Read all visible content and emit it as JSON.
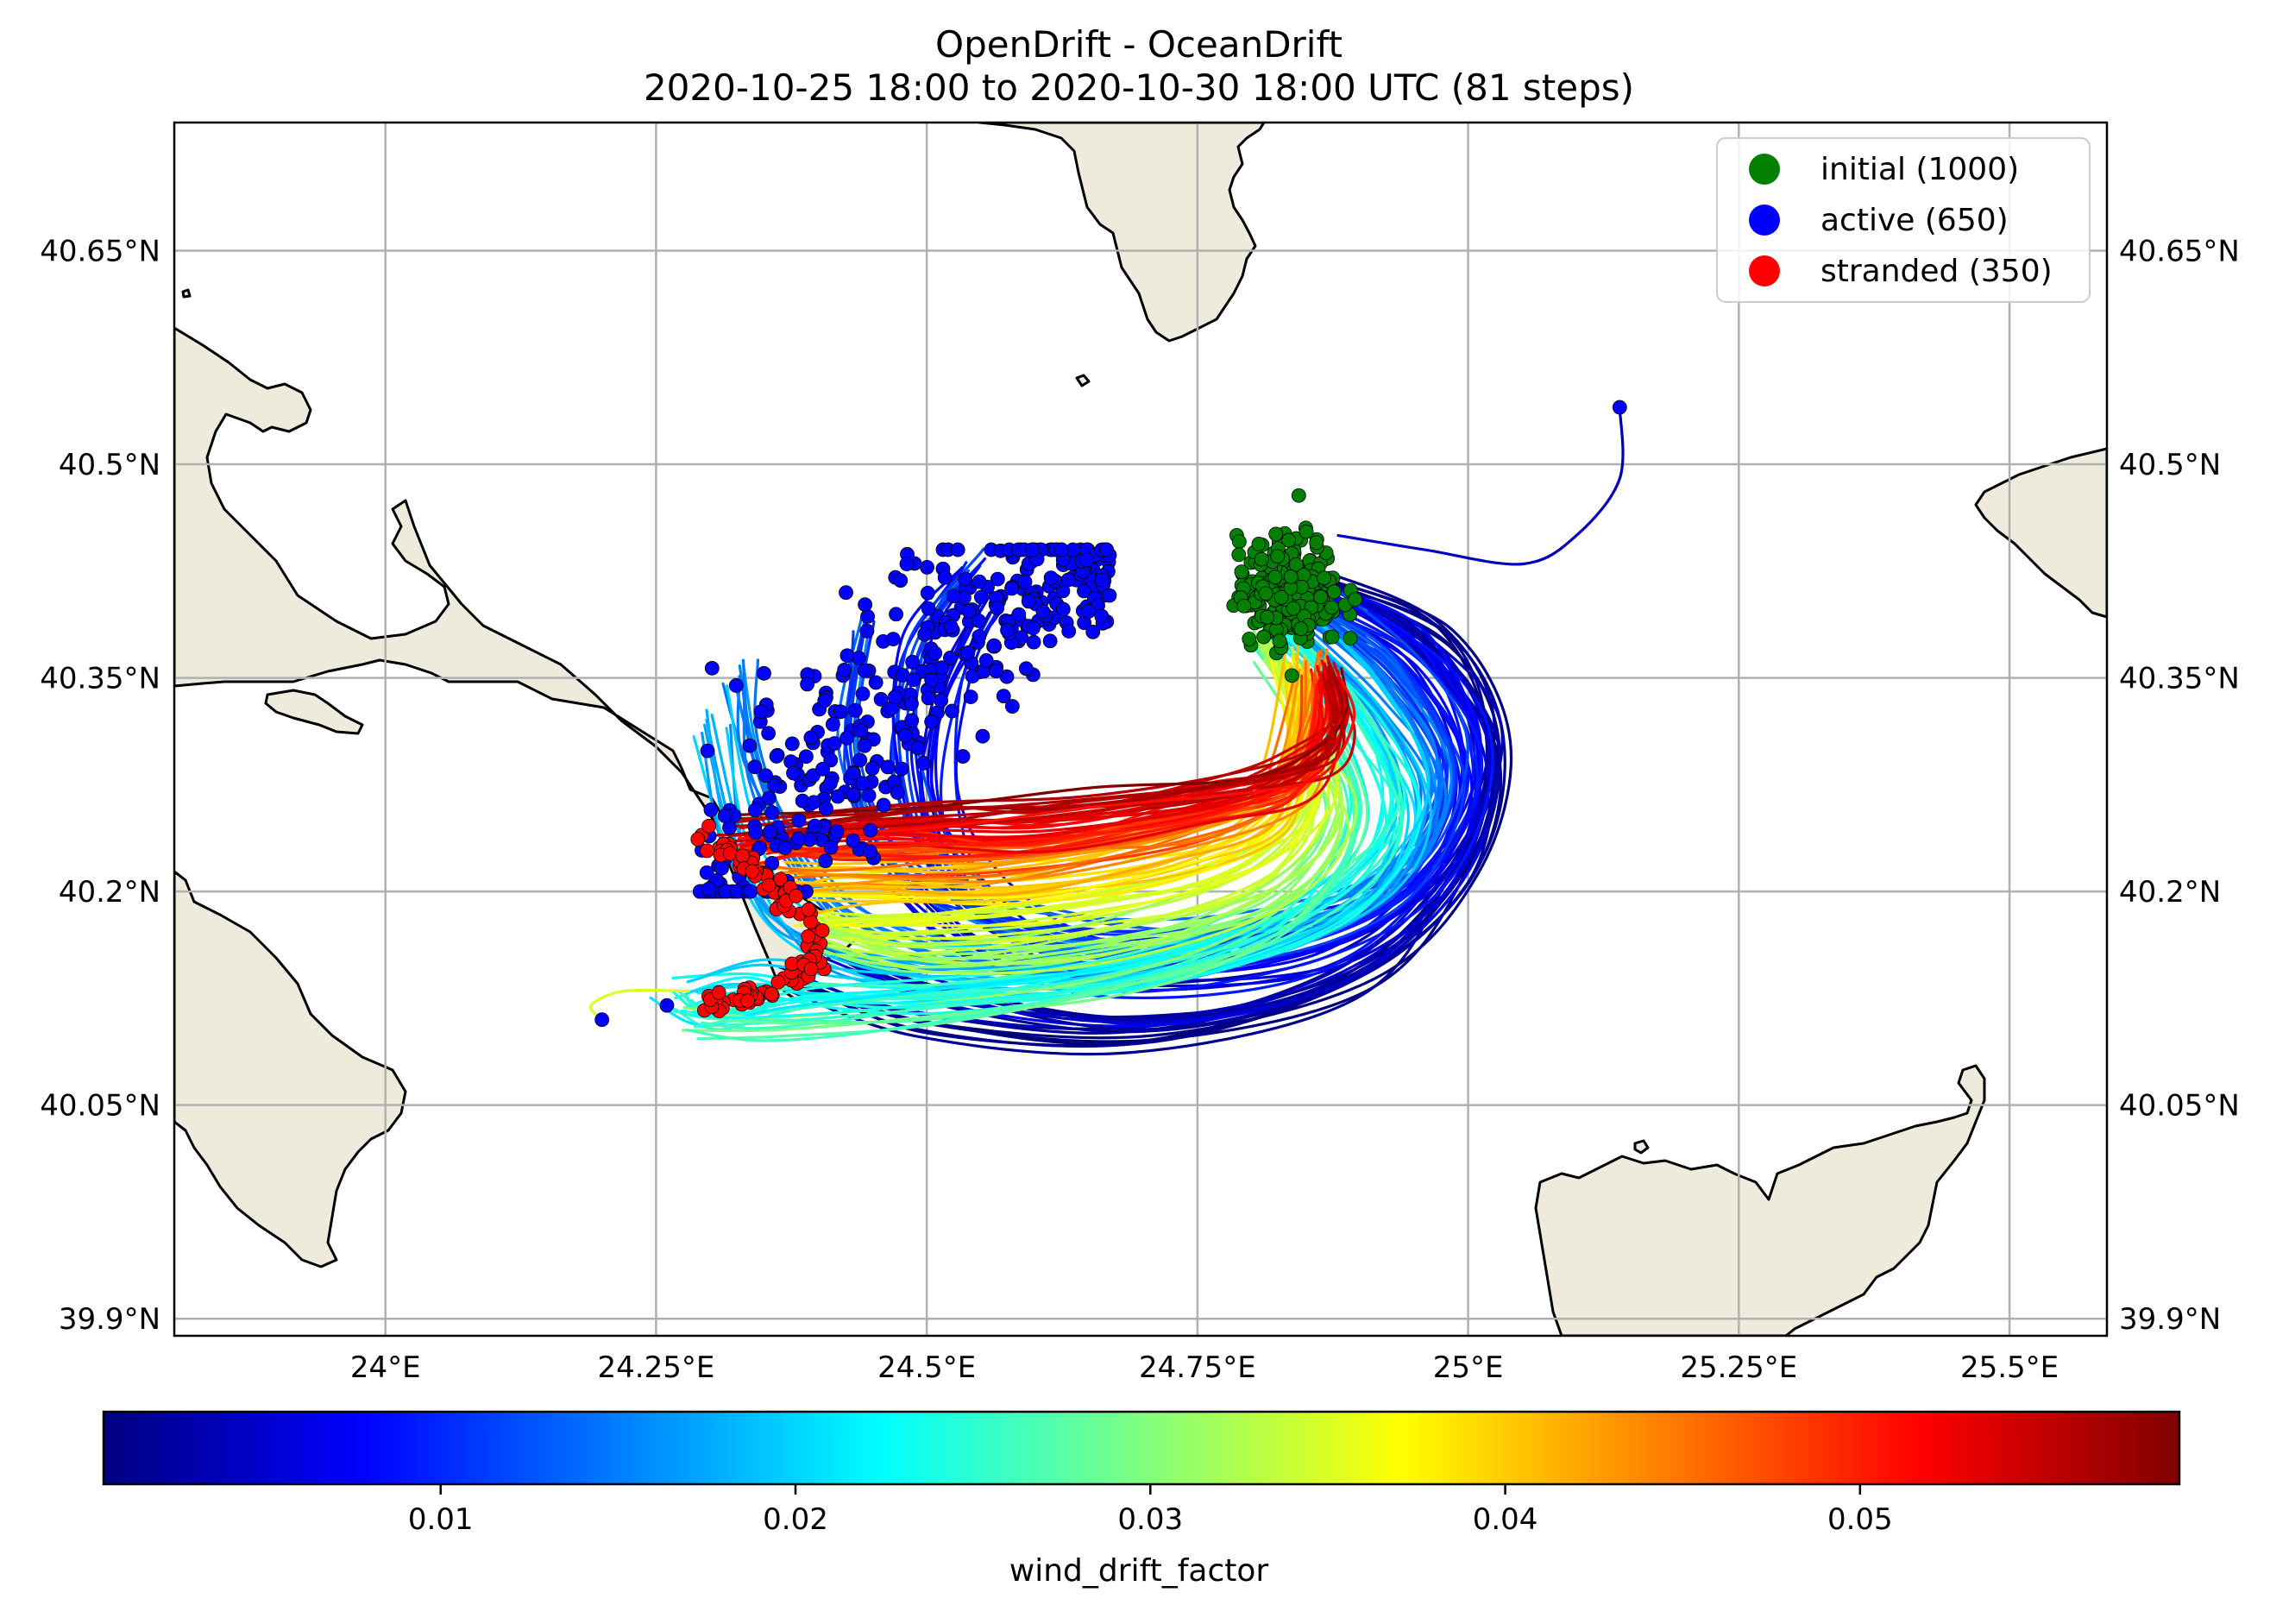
{
  "figure": {
    "title_line1": "OpenDrift - OceanDrift",
    "title_line2": "2020-10-25 18:00 to 2020-10-30 18:00 UTC (81 steps)"
  },
  "map": {
    "lon_range": [
      23.805,
      25.59
    ],
    "lat_range": [
      39.888,
      40.74
    ],
    "lon_ticks": [
      {
        "value": 24.0,
        "label": "24°E"
      },
      {
        "value": 24.25,
        "label": "24.25°E"
      },
      {
        "value": 24.5,
        "label": "24.5°E"
      },
      {
        "value": 24.75,
        "label": "24.75°E"
      },
      {
        "value": 25.0,
        "label": "25°E"
      },
      {
        "value": 25.25,
        "label": "25.25°E"
      },
      {
        "value": 25.5,
        "label": "25.5°E"
      }
    ],
    "lat_ticks": [
      {
        "value": 40.65,
        "label": "40.65°N"
      },
      {
        "value": 40.5,
        "label": "40.5°N"
      },
      {
        "value": 40.35,
        "label": "40.35°N"
      },
      {
        "value": 40.2,
        "label": "40.2°N"
      },
      {
        "value": 40.05,
        "label": "40.05°N"
      },
      {
        "value": 39.9,
        "label": "39.9°N"
      }
    ],
    "gridlines": true,
    "land_color": "#efebdc",
    "ocean_color": "#ffffff",
    "coastline_color": "#000000"
  },
  "legend": {
    "placement": "top-right",
    "items": [
      {
        "label": "initial (1000)",
        "color": "#007f00"
      },
      {
        "label": "active (650)",
        "color": "#0000ff"
      },
      {
        "label": "stranded (350)",
        "color": "#ff0000"
      }
    ]
  },
  "colorbar": {
    "label": "wind_drift_factor",
    "colormap": "jet",
    "range": [
      0.0005,
      0.059
    ],
    "ticks": [
      {
        "value": 0.01,
        "label": "0.01"
      },
      {
        "value": 0.02,
        "label": "0.02"
      },
      {
        "value": 0.03,
        "label": "0.03"
      },
      {
        "value": 0.04,
        "label": "0.04"
      },
      {
        "value": 0.05,
        "label": "0.05"
      }
    ],
    "stops": [
      "#00007f",
      "#0000ff",
      "#007fff",
      "#00ffff",
      "#7fff7f",
      "#ffff00",
      "#ff7f00",
      "#ff0000",
      "#7f0000"
    ]
  },
  "chart_data": {
    "type": "scatter",
    "title": "OpenDrift - OceanDrift",
    "subtitle": "2020-10-25 18:00 to 2020-10-30 18:00 UTC (81 steps)",
    "xlabel": "",
    "ylabel": "",
    "xlim": [
      23.805,
      25.59
    ],
    "ylim": [
      39.888,
      40.74
    ],
    "grid": true,
    "legend_placement": "top-right",
    "series": [
      {
        "name": "initial (1000)",
        "color": "#007f00",
        "center_lon": 24.835,
        "center_lat": 40.41,
        "spread_lon": 0.047,
        "spread_lat": 0.038
      },
      {
        "name": "active (650)",
        "color": "#0000ff",
        "region_lon": [
          24.29,
          24.67
        ],
        "region_lat": [
          40.2,
          40.44
        ],
        "outliers": [
          {
            "lon": 25.14,
            "lat": 40.54
          },
          {
            "lon": 24.2,
            "lat": 40.11
          },
          {
            "lon": 24.26,
            "lat": 40.12
          }
        ]
      },
      {
        "name": "stranded (350)",
        "color": "#ff0000",
        "coast_points": [
          {
            "lon": 24.3,
            "lat": 40.235
          },
          {
            "lon": 24.32,
            "lat": 40.225
          },
          {
            "lon": 24.36,
            "lat": 40.205
          },
          {
            "lon": 24.39,
            "lat": 40.18
          },
          {
            "lon": 24.395,
            "lat": 40.152
          },
          {
            "lon": 24.37,
            "lat": 40.135
          },
          {
            "lon": 24.33,
            "lat": 40.127
          },
          {
            "lon": 24.3,
            "lat": 40.118
          }
        ]
      }
    ],
    "trajectory_paths": [
      {
        "wind_drift_factor": 0.002,
        "points": [
          [
            24.87,
            40.42
          ],
          [
            24.98,
            40.38
          ],
          [
            25.03,
            40.31
          ],
          [
            25.0,
            40.22
          ],
          [
            24.9,
            40.14
          ],
          [
            24.7,
            40.1
          ],
          [
            24.5,
            40.11
          ],
          [
            24.38,
            40.14
          ]
        ]
      },
      {
        "wind_drift_factor": 0.004,
        "points": [
          [
            24.86,
            40.42
          ],
          [
            24.97,
            40.37
          ],
          [
            25.02,
            40.3
          ],
          [
            24.99,
            40.21
          ],
          [
            24.88,
            40.14
          ],
          [
            24.7,
            40.11
          ],
          [
            24.52,
            40.13
          ],
          [
            24.42,
            40.16
          ]
        ]
      },
      {
        "wind_drift_factor": 0.006,
        "points": [
          [
            24.85,
            40.41
          ],
          [
            24.96,
            40.36
          ],
          [
            25.01,
            40.29
          ],
          [
            24.97,
            40.21
          ],
          [
            24.86,
            40.15
          ],
          [
            24.68,
            40.13
          ],
          [
            24.55,
            40.15
          ],
          [
            24.47,
            40.2
          ]
        ]
      },
      {
        "wind_drift_factor": 0.008,
        "points": [
          [
            24.85,
            40.4
          ],
          [
            24.95,
            40.36
          ],
          [
            25.0,
            40.28
          ],
          [
            24.95,
            40.2
          ],
          [
            24.82,
            40.16
          ],
          [
            24.66,
            40.15
          ],
          [
            24.56,
            40.19
          ],
          [
            24.51,
            40.26
          ],
          [
            24.52,
            40.34
          ],
          [
            24.56,
            40.4
          ]
        ]
      },
      {
        "wind_drift_factor": 0.01,
        "points": [
          [
            24.84,
            40.41
          ],
          [
            24.94,
            40.35
          ],
          [
            24.99,
            40.28
          ],
          [
            24.94,
            40.2
          ],
          [
            24.8,
            40.16
          ],
          [
            24.64,
            40.16
          ],
          [
            24.53,
            40.2
          ],
          [
            24.48,
            40.28
          ],
          [
            24.49,
            40.37
          ],
          [
            24.54,
            40.43
          ]
        ]
      },
      {
        "wind_drift_factor": 0.012,
        "points": [
          [
            24.84,
            40.4
          ],
          [
            24.93,
            40.35
          ],
          [
            24.98,
            40.28
          ],
          [
            24.93,
            40.21
          ],
          [
            24.78,
            40.17
          ],
          [
            24.6,
            40.17
          ],
          [
            24.48,
            40.21
          ],
          [
            24.43,
            40.29
          ],
          [
            24.44,
            40.38
          ]
        ]
      },
      {
        "wind_drift_factor": 0.015,
        "points": [
          [
            24.83,
            40.4
          ],
          [
            24.92,
            40.34
          ],
          [
            24.97,
            40.27
          ],
          [
            24.92,
            40.2
          ],
          [
            24.76,
            40.16
          ],
          [
            24.58,
            40.15
          ],
          [
            24.45,
            40.17
          ],
          [
            24.38,
            40.22
          ],
          [
            24.34,
            40.29
          ],
          [
            24.33,
            40.35
          ]
        ]
      },
      {
        "wind_drift_factor": 0.018,
        "points": [
          [
            24.83,
            40.39
          ],
          [
            24.91,
            40.33
          ],
          [
            24.95,
            40.26
          ],
          [
            24.9,
            40.19
          ],
          [
            24.74,
            40.15
          ],
          [
            24.56,
            40.14
          ],
          [
            24.44,
            40.15
          ],
          [
            24.36,
            40.18
          ],
          [
            24.32,
            40.24
          ],
          [
            24.3,
            40.32
          ]
        ]
      },
      {
        "wind_drift_factor": 0.021,
        "points": [
          [
            24.82,
            40.39
          ],
          [
            24.9,
            40.33
          ],
          [
            24.94,
            40.26
          ],
          [
            24.88,
            40.19
          ],
          [
            24.72,
            40.15
          ],
          [
            24.54,
            40.13
          ],
          [
            24.42,
            40.13
          ],
          [
            24.34,
            40.14
          ],
          [
            24.28,
            40.13
          ]
        ]
      },
      {
        "wind_drift_factor": 0.024,
        "points": [
          [
            24.82,
            40.38
          ],
          [
            24.89,
            40.32
          ],
          [
            24.92,
            40.25
          ],
          [
            24.85,
            40.19
          ],
          [
            24.7,
            40.15
          ],
          [
            24.52,
            40.13
          ],
          [
            24.38,
            40.12
          ],
          [
            24.3,
            40.11
          ],
          [
            24.26,
            40.12
          ]
        ]
      },
      {
        "wind_drift_factor": 0.027,
        "points": [
          [
            24.81,
            40.38
          ],
          [
            24.87,
            40.32
          ],
          [
            24.9,
            40.25
          ],
          [
            24.83,
            40.18
          ],
          [
            24.68,
            40.14
          ],
          [
            24.5,
            40.12
          ],
          [
            24.36,
            40.11
          ],
          [
            24.29,
            40.11
          ]
        ]
      },
      {
        "wind_drift_factor": 0.03,
        "points": [
          [
            24.81,
            40.37
          ],
          [
            24.86,
            40.31
          ],
          [
            24.88,
            40.25
          ],
          [
            24.81,
            40.19
          ],
          [
            24.66,
            40.16
          ],
          [
            24.5,
            40.15
          ],
          [
            24.4,
            40.17
          ]
        ]
      },
      {
        "wind_drift_factor": 0.033,
        "points": [
          [
            24.82,
            40.37
          ],
          [
            24.85,
            40.31
          ],
          [
            24.86,
            40.25
          ],
          [
            24.79,
            40.2
          ],
          [
            24.64,
            40.17
          ],
          [
            24.49,
            40.16
          ],
          [
            24.4,
            40.17
          ]
        ]
      },
      {
        "wind_drift_factor": 0.036,
        "points": [
          [
            24.83,
            40.36
          ],
          [
            24.85,
            40.3
          ],
          [
            24.84,
            40.25
          ],
          [
            24.76,
            40.21
          ],
          [
            24.6,
            40.19
          ],
          [
            24.46,
            40.18
          ],
          [
            24.39,
            40.18
          ]
        ]
      },
      {
        "wind_drift_factor": 0.039,
        "points": [
          [
            24.84,
            40.36
          ],
          [
            24.84,
            40.3
          ],
          [
            24.82,
            40.25
          ],
          [
            24.73,
            40.22
          ],
          [
            24.58,
            40.2
          ],
          [
            24.44,
            40.2
          ],
          [
            24.38,
            40.2
          ]
        ]
      },
      {
        "wind_drift_factor": 0.042,
        "points": [
          [
            24.85,
            40.36
          ],
          [
            24.84,
            40.3
          ],
          [
            24.81,
            40.26
          ],
          [
            24.71,
            40.23
          ],
          [
            24.56,
            40.21
          ],
          [
            24.43,
            40.21
          ],
          [
            24.37,
            40.21
          ]
        ]
      },
      {
        "wind_drift_factor": 0.045,
        "points": [
          [
            24.86,
            40.36
          ],
          [
            24.85,
            40.31
          ],
          [
            24.82,
            40.27
          ],
          [
            24.72,
            40.24
          ],
          [
            24.56,
            40.22
          ],
          [
            24.42,
            40.22
          ],
          [
            24.36,
            40.22
          ]
        ]
      },
      {
        "wind_drift_factor": 0.048,
        "points": [
          [
            24.86,
            40.35
          ],
          [
            24.86,
            40.31
          ],
          [
            24.83,
            40.27
          ],
          [
            24.74,
            40.25
          ],
          [
            24.58,
            40.23
          ],
          [
            24.43,
            40.23
          ],
          [
            24.35,
            40.23
          ]
        ]
      },
      {
        "wind_drift_factor": 0.051,
        "points": [
          [
            24.87,
            40.35
          ],
          [
            24.87,
            40.31
          ],
          [
            24.84,
            40.28
          ],
          [
            24.75,
            40.26
          ],
          [
            24.6,
            40.24
          ],
          [
            24.45,
            40.24
          ],
          [
            24.34,
            40.23
          ]
        ]
      },
      {
        "wind_drift_factor": 0.054,
        "points": [
          [
            24.87,
            40.36
          ],
          [
            24.88,
            40.32
          ],
          [
            24.85,
            40.29
          ],
          [
            24.77,
            40.27
          ],
          [
            24.62,
            40.25
          ],
          [
            24.48,
            40.25
          ],
          [
            24.33,
            40.235
          ]
        ]
      },
      {
        "wind_drift_factor": 0.056,
        "points": [
          [
            24.88,
            40.35
          ],
          [
            24.89,
            40.32
          ],
          [
            24.87,
            40.29
          ],
          [
            24.79,
            40.27
          ],
          [
            24.65,
            40.26
          ],
          [
            24.5,
            40.25
          ],
          [
            24.32,
            40.24
          ]
        ]
      },
      {
        "wind_drift_factor": 0.004,
        "points": [
          [
            24.88,
            40.45
          ],
          [
            24.96,
            40.44
          ],
          [
            25.05,
            40.43
          ],
          [
            25.1,
            40.45
          ],
          [
            25.14,
            40.49
          ],
          [
            25.14,
            40.54
          ]
        ]
      },
      {
        "wind_drift_factor": 0.035,
        "points": [
          [
            24.28,
            40.13
          ],
          [
            24.22,
            40.13
          ],
          [
            24.19,
            40.12
          ],
          [
            24.2,
            40.11
          ]
        ]
      }
    ]
  }
}
